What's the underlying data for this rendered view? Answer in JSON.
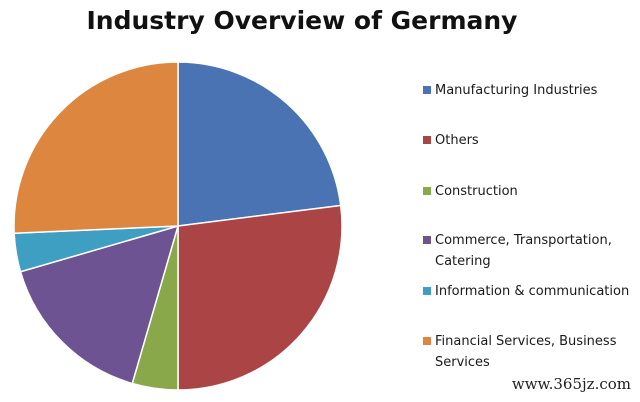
{
  "chart_data": {
    "type": "pie",
    "title": "Industry Overview of Germany",
    "slices": [
      {
        "label": "Manufacturing Industries",
        "value": 23,
        "color": "#4a73b3"
      },
      {
        "label": "Others",
        "value": 27,
        "color": "#ab4444"
      },
      {
        "label": "Construction",
        "value": 4.5,
        "color": "#88a84a"
      },
      {
        "label": "Commerce, Transportation, Catering",
        "value": 16,
        "color": "#6e5392"
      },
      {
        "label": "Information & communication",
        "value": 3.8,
        "color": "#3f9fc2"
      },
      {
        "label": "Financial Services, Business Services",
        "value": 25.7,
        "color": "#dd8640"
      }
    ],
    "legend_position": "right"
  },
  "watermark": "www.365jz.com"
}
